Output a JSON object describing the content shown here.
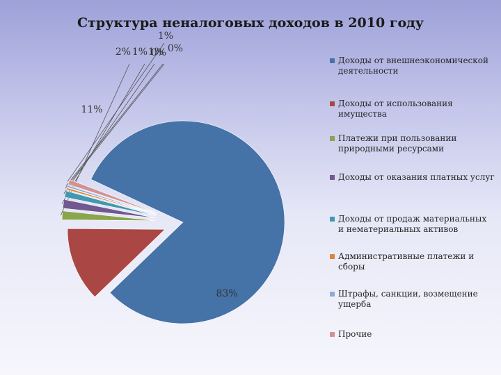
{
  "chart_data": {
    "type": "pie",
    "title": "Структура неналоговых доходов в 2010 году",
    "legend_position": "right",
    "categories": [
      "Доходы от внешнеэкономической деятельности",
      "Доходы от использования имущества",
      "Платежи при пользовании природными ресурсами",
      "Доходы от оказания платных услуг",
      "Доходы от продаж материальных и нематериальных активов",
      "Административные платежи и сборы",
      "Штрафы, санкции, возмещение ущерба",
      "Прочие"
    ],
    "values": [
      83,
      11,
      2,
      1,
      1,
      0,
      0,
      1
    ],
    "data_labels": [
      "83%",
      "11%",
      "2%",
      "1%",
      "1%",
      "0%",
      "0%",
      "1%"
    ],
    "colors": [
      "#4572a7",
      "#aa4643",
      "#89a54e",
      "#71588f",
      "#4198af",
      "#db843d",
      "#93a9cf",
      "#d19392"
    ],
    "exploded": true
  }
}
